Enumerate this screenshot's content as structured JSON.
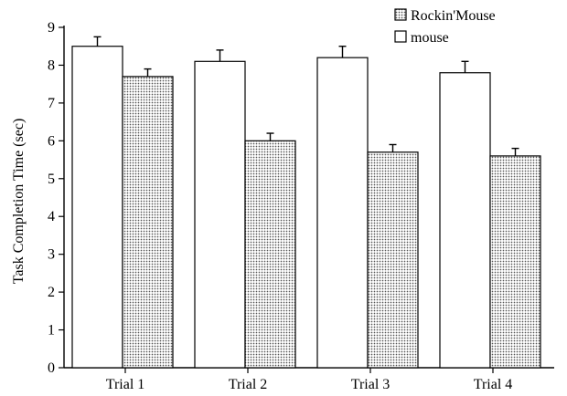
{
  "chart_data": {
    "type": "bar",
    "title": "",
    "xlabel": "",
    "ylabel": "Task Completion Time (sec)",
    "categories": [
      "Trial 1",
      "Trial 2",
      "Trial 3",
      "Trial 4"
    ],
    "ylim": [
      0,
      9
    ],
    "yticks": [
      0,
      1,
      2,
      3,
      4,
      5,
      6,
      7,
      8,
      9
    ],
    "grid": false,
    "legend_position": "top-right",
    "series": [
      {
        "name": "mouse",
        "values": [
          8.5,
          8.1,
          8.2,
          7.8
        ],
        "errors": [
          0.25,
          0.3,
          0.3,
          0.3
        ],
        "fill": "#ffffff"
      },
      {
        "name": "Rockin'Mouse",
        "values": [
          7.7,
          6.0,
          5.7,
          5.6
        ],
        "errors": [
          0.2,
          0.2,
          0.2,
          0.2
        ],
        "fill": "dotted"
      }
    ],
    "legend_order": [
      1,
      0
    ]
  }
}
